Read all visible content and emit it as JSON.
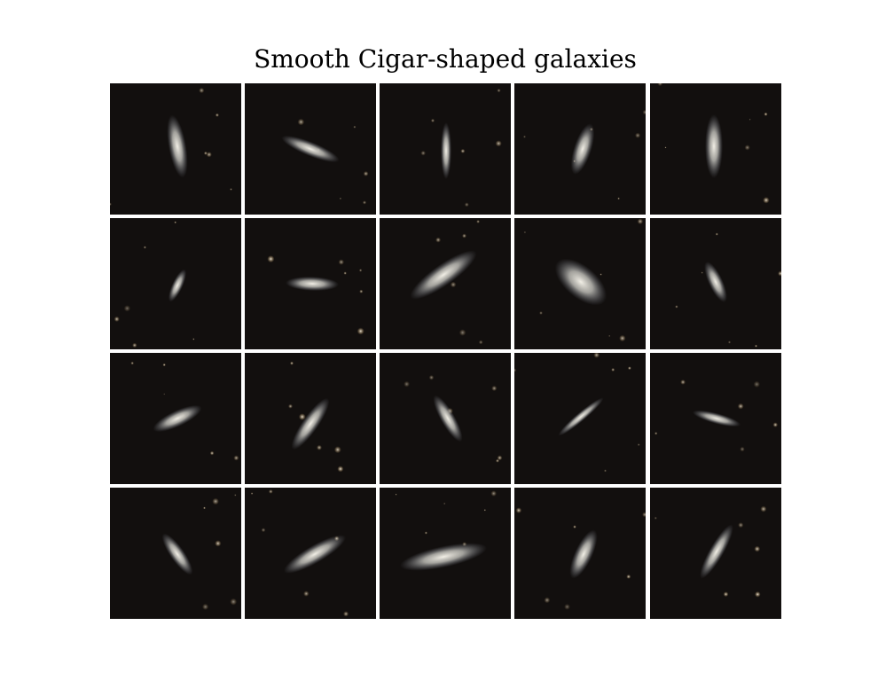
{
  "title": "Smooth Cigar-shaped galaxies"
}
